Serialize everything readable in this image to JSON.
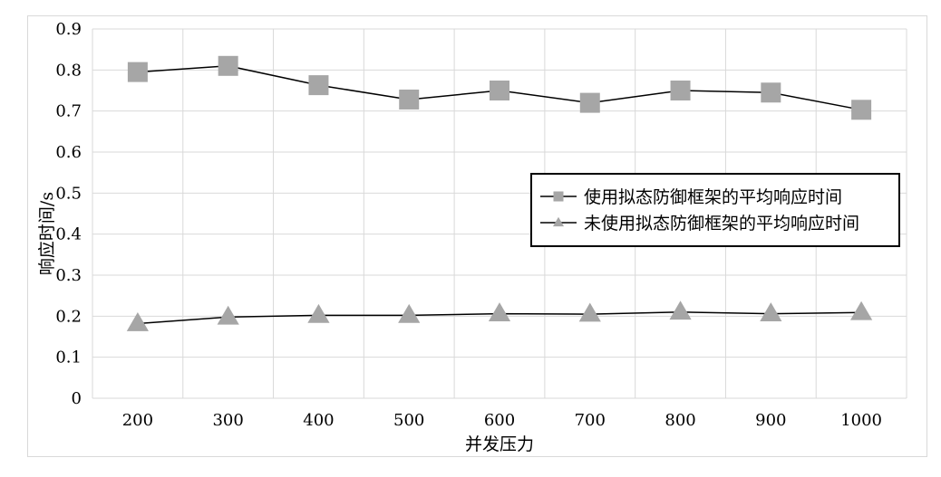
{
  "chart_data": {
    "type": "line",
    "categories": [
      "200",
      "300",
      "400",
      "500",
      "600",
      "700",
      "800",
      "900",
      "1000"
    ],
    "xlabel": "并发压力",
    "ylabel": "响应时间/s",
    "ylim": [
      0,
      0.9
    ],
    "yticks": [
      "0",
      "0.1",
      "0.2",
      "0.3",
      "0.4",
      "0.5",
      "0.6",
      "0.7",
      "0.8",
      "0.9"
    ],
    "grid": true,
    "legend_position": "right",
    "series": [
      {
        "name": "使用拟态防御框架的平均响应时间",
        "marker": "square",
        "color": "#a6a6a6",
        "values": [
          0.795,
          0.81,
          0.763,
          0.728,
          0.75,
          0.72,
          0.75,
          0.745,
          0.703
        ]
      },
      {
        "name": "未使用拟态防御框架的平均响应时间",
        "marker": "triangle",
        "color": "#a6a6a6",
        "values": [
          0.182,
          0.198,
          0.202,
          0.202,
          0.206,
          0.205,
          0.21,
          0.206,
          0.209
        ]
      }
    ]
  }
}
